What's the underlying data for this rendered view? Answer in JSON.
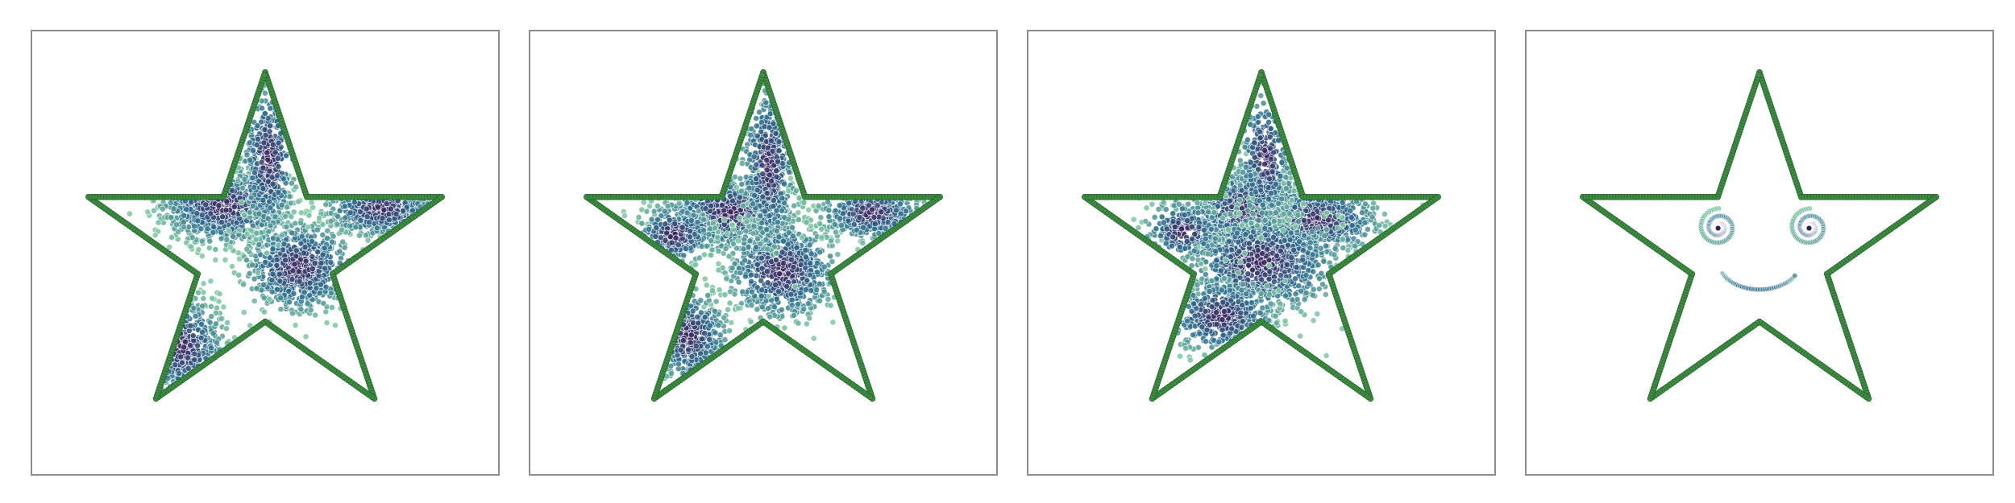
{
  "chart_data": [
    {
      "type": "scatter",
      "title": "",
      "xlabel": "",
      "ylabel": "",
      "grid": false,
      "legend": "none",
      "xlim": [
        -1.15,
        1.15
      ],
      "ylim": [
        -1.12,
        1.12
      ],
      "colors": {
        "outline": "#3f8f3f",
        "outline_edge": "#1f5f2f",
        "point_dark": "#3b1c5a",
        "point_mid": "#2a6f8f",
        "point_light": "#7cc8a0",
        "point_edge": "#ffffff"
      },
      "outline_series": {
        "name": "",
        "points_per_edge": 46,
        "vertices": [
          [
            0.0,
            1.0
          ],
          [
            0.2245,
            0.309
          ],
          [
            0.9511,
            0.309
          ],
          [
            0.3633,
            -0.118
          ],
          [
            0.5878,
            -0.809
          ],
          [
            0.0,
            -0.382
          ],
          [
            -0.5878,
            -0.809
          ],
          [
            -0.3633,
            -0.118
          ],
          [
            -0.9511,
            0.309
          ],
          [
            -0.2245,
            0.309
          ]
        ]
      },
      "clusters": [
        {
          "center": [
            -0.22,
            0.26
          ],
          "spread": [
            0.16,
            0.1
          ],
          "count": 900
        },
        {
          "center": [
            0.18,
            -0.08
          ],
          "spread": [
            0.14,
            0.12
          ],
          "count": 800
        },
        {
          "center": [
            0.62,
            0.24
          ],
          "spread": [
            0.14,
            0.07
          ],
          "count": 450
        },
        {
          "center": [
            -0.45,
            -0.52
          ],
          "spread": [
            0.11,
            0.13
          ],
          "count": 380
        },
        {
          "center": [
            0.02,
            0.52
          ],
          "spread": [
            0.07,
            0.2
          ],
          "count": 400
        }
      ]
    },
    {
      "type": "scatter",
      "title": "",
      "xlabel": "",
      "ylabel": "",
      "grid": false,
      "legend": "none",
      "xlim": [
        -1.15,
        1.15
      ],
      "ylim": [
        -1.12,
        1.12
      ],
      "colors": {
        "outline": "#3f8f3f",
        "outline_edge": "#1f5f2f",
        "point_dark": "#3b1c5a",
        "point_mid": "#2a6f8f",
        "point_light": "#7cc8a0",
        "point_edge": "#ffffff"
      },
      "outline_series": {
        "name": "",
        "points_per_edge": 46,
        "vertices": [
          [
            0.0,
            1.0
          ],
          [
            0.2245,
            0.309
          ],
          [
            0.9511,
            0.309
          ],
          [
            0.3633,
            -0.118
          ],
          [
            0.5878,
            -0.809
          ],
          [
            0.0,
            -0.382
          ],
          [
            -0.5878,
            -0.809
          ],
          [
            -0.3633,
            -0.118
          ],
          [
            -0.9511,
            0.309
          ],
          [
            -0.2245,
            0.309
          ]
        ]
      },
      "clusters": [
        {
          "center": [
            -0.18,
            0.22
          ],
          "spread": [
            0.17,
            0.1
          ],
          "count": 850
        },
        {
          "center": [
            0.1,
            -0.1
          ],
          "spread": [
            0.14,
            0.13
          ],
          "count": 750
        },
        {
          "center": [
            0.58,
            0.22
          ],
          "spread": [
            0.13,
            0.07
          ],
          "count": 420
        },
        {
          "center": [
            -0.4,
            -0.46
          ],
          "spread": [
            0.1,
            0.12
          ],
          "count": 380
        },
        {
          "center": [
            0.03,
            0.48
          ],
          "spread": [
            0.07,
            0.22
          ],
          "count": 420
        },
        {
          "center": [
            -0.48,
            0.1
          ],
          "spread": [
            0.1,
            0.08
          ],
          "count": 250
        }
      ]
    },
    {
      "type": "scatter",
      "title": "",
      "xlabel": "",
      "ylabel": "",
      "grid": false,
      "legend": "none",
      "xlim": [
        -1.15,
        1.15
      ],
      "ylim": [
        -1.12,
        1.12
      ],
      "colors": {
        "outline": "#3f8f3f",
        "outline_edge": "#1f5f2f",
        "point_dark": "#3b1c5a",
        "point_mid": "#2a6f8f",
        "point_light": "#7cc8a0",
        "point_edge": "#ffffff"
      },
      "outline_series": {
        "name": "",
        "points_per_edge": 46,
        "vertices": [
          [
            0.0,
            1.0
          ],
          [
            0.2245,
            0.309
          ],
          [
            0.9511,
            0.309
          ],
          [
            0.3633,
            -0.118
          ],
          [
            0.5878,
            -0.809
          ],
          [
            0.0,
            -0.382
          ],
          [
            -0.5878,
            -0.809
          ],
          [
            -0.3633,
            -0.118
          ],
          [
            -0.9511,
            0.309
          ],
          [
            -0.2245,
            0.309
          ]
        ]
      },
      "clusters": [
        {
          "center": [
            -0.05,
            0.24
          ],
          "spread": [
            0.18,
            0.11
          ],
          "count": 1000
        },
        {
          "center": [
            0.3,
            0.18
          ],
          "spread": [
            0.16,
            0.09
          ],
          "count": 700
        },
        {
          "center": [
            0.0,
            -0.05
          ],
          "spread": [
            0.2,
            0.14
          ],
          "count": 850
        },
        {
          "center": [
            -0.22,
            -0.35
          ],
          "spread": [
            0.14,
            0.1
          ],
          "count": 450
        },
        {
          "center": [
            0.02,
            0.52
          ],
          "spread": [
            0.07,
            0.18
          ],
          "count": 300
        },
        {
          "center": [
            -0.42,
            0.12
          ],
          "spread": [
            0.1,
            0.08
          ],
          "count": 200
        }
      ]
    },
    {
      "type": "scatter",
      "title": "",
      "xlabel": "",
      "ylabel": "",
      "grid": false,
      "legend": "none",
      "xlim": [
        -1.15,
        1.15
      ],
      "ylim": [
        -1.12,
        1.12
      ],
      "colors": {
        "outline": "#3f8f3f",
        "outline_edge": "#1f5f2f",
        "point_dark": "#3b1c5a",
        "point_mid": "#2a6f8f",
        "point_light": "#7cc8a0",
        "point_edge": "#ffffff"
      },
      "outline_series": {
        "name": "",
        "points_per_edge": 46,
        "vertices": [
          [
            0.0,
            1.0
          ],
          [
            0.2245,
            0.309
          ],
          [
            0.9511,
            0.309
          ],
          [
            0.3633,
            -0.118
          ],
          [
            0.5878,
            -0.809
          ],
          [
            0.0,
            -0.382
          ],
          [
            -0.5878,
            -0.809
          ],
          [
            -0.3633,
            -0.118
          ],
          [
            -0.9511,
            0.309
          ],
          [
            -0.2245,
            0.309
          ]
        ]
      },
      "spirals": [
        {
          "center": [
            -0.22,
            0.14
          ],
          "max_radius": 0.1,
          "turns": 2.4,
          "count": 140,
          "direction": 1
        },
        {
          "center": [
            0.27,
            0.14
          ],
          "max_radius": 0.1,
          "turns": 2.4,
          "count": 140,
          "direction": 1
        }
      ],
      "smile": {
        "center": [
          0.0,
          -0.05
        ],
        "radius": 0.22,
        "start_angle_deg": 205,
        "end_angle_deg": 330,
        "count": 60
      }
    }
  ]
}
